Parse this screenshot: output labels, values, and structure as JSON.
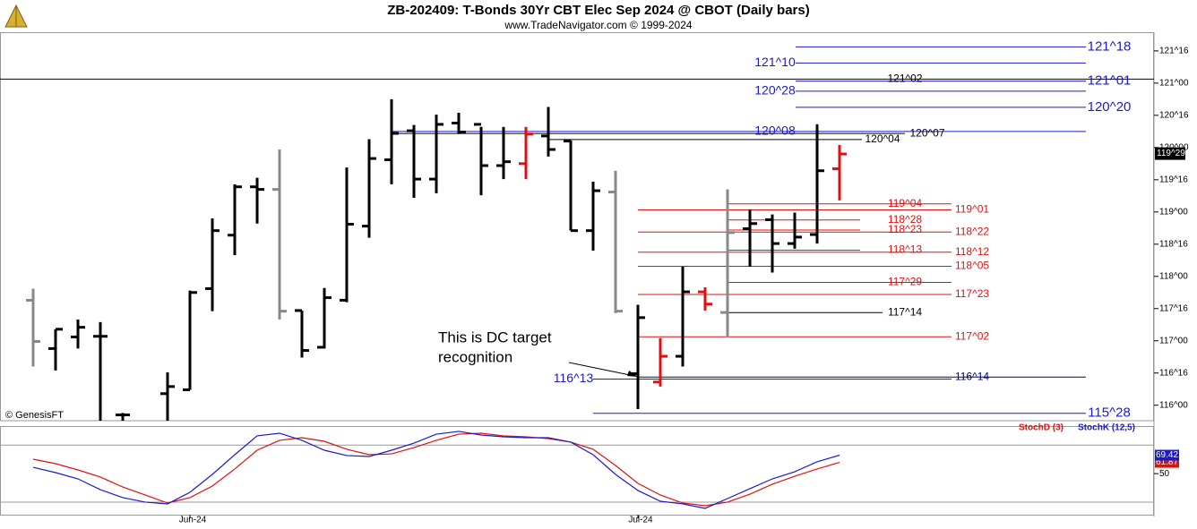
{
  "chart_data": [
    {
      "type": "ohlc",
      "title": "ZB-202409:  T-Bonds 30Yr CBT Elec Sep 2024 @ CBOT  (Daily bars)",
      "subtitle": "www.TradeNavigator.com © 1999-2024",
      "watermark": "© GenesisFT",
      "open": [
        117.63,
        116.88,
        117.06,
        117.07,
        115.85,
        null,
        116.18,
        116.24,
        117.81,
        118.64,
        119.39,
        119.35,
        117.47,
        116.9,
        117.63,
        118.78,
        119.81,
        120.26,
        119.51,
        120.38,
        120.36,
        119.72,
        119.75,
        120.18,
        120.1,
        118.71,
        119.31,
        116.49,
        116.36,
        116.76,
        117.76,
        117.44,
        118.74,
        118.88,
        118.51,
        118.65,
        119.67
      ],
      "high": [
        117.81,
        117.18,
        117.33,
        117.29,
        115.88,
        null,
        116.51,
        117.78,
        118.9,
        119.43,
        119.53,
        119.97,
        117.47,
        117.82,
        119.69,
        120.13,
        120.75,
        120.35,
        120.51,
        120.54,
        120.32,
        120.32,
        120.32,
        120.63,
        120.11,
        119.47,
        119.64,
        117.56,
        117.04,
        118.15,
        117.83,
        119.35,
        119.04,
        118.96,
        118.99,
        120.36,
        120.04
      ],
      "low": [
        116.6,
        116.54,
        116.88,
        115.76,
        115.76,
        null,
        115.76,
        116.24,
        117.46,
        118.33,
        118.82,
        117.33,
        116.74,
        116.88,
        117.6,
        118.6,
        119.43,
        119.22,
        119.29,
        120.21,
        119.26,
        119.51,
        119.51,
        119.86,
        118.71,
        118.4,
        117.43,
        115.94,
        116.29,
        116.6,
        117.47,
        117.06,
        118.15,
        118.06,
        118.43,
        118.51,
        119.18
      ],
      "close": [
        116.99,
        117.18,
        117.21,
        117.07,
        115.85,
        null,
        116.29,
        117.75,
        118.71,
        119.39,
        119.35,
        117.46,
        116.85,
        117.67,
        118.81,
        119.83,
        120.22,
        119.51,
        120.36,
        120.24,
        119.72,
        119.78,
        120.21,
        119.97,
        118.71,
        119.33,
        117.46,
        117.36,
        116.76,
        117.76,
        117.57,
        118.68,
        118.82,
        118.51,
        118.61,
        119.64,
        119.9
      ],
      "colors": [
        "#888888",
        "#000000",
        "#000000",
        "#000000",
        "#000000",
        null,
        "#000000",
        "#000000",
        "#000000",
        "#000000",
        "#000000",
        "#888888",
        "#000000",
        "#000000",
        "#000000",
        "#000000",
        "#000000",
        "#000000",
        "#000000",
        "#000000",
        "#000000",
        "#000000",
        "#e01010",
        "#000000",
        "#000000",
        "#000000",
        "#888888",
        "#000000",
        "#e01010",
        "#000000",
        "#e01010",
        "#888888",
        "#000000",
        "#000000",
        "#000000",
        "#000000",
        "#e01010"
      ],
      "ylim": [
        115.76,
        121.79
      ],
      "yticks": [
        {
          "value": 116,
          "label": "116^00"
        },
        {
          "value": 116.5,
          "label": "116^16"
        },
        {
          "value": 117,
          "label": "117^00"
        },
        {
          "value": 117.5,
          "label": "117^16"
        },
        {
          "value": 118,
          "label": "118^00"
        },
        {
          "value": 118.5,
          "label": "118^16"
        },
        {
          "value": 119,
          "label": "119^00"
        },
        {
          "value": 119.5,
          "label": "119^16"
        },
        {
          "value": 120,
          "label": "120^00"
        },
        {
          "value": 120.5,
          "label": "120^16"
        },
        {
          "value": 121,
          "label": "121^00"
        },
        {
          "value": 121.5,
          "label": "121^16"
        }
      ],
      "last_price": {
        "value": 119.90625,
        "label": "119^29"
      },
      "levels": [
        {
          "value": 121.5625,
          "label": "121^18",
          "color": "#1a1acc"
        },
        {
          "value": 121.3125,
          "label": "121^10",
          "color": "#1a1acc"
        },
        {
          "value": 121.0625,
          "label": "121^02",
          "color": "#000000"
        },
        {
          "value": 121.03125,
          "label": "121^01",
          "color": "#1a1acc"
        },
        {
          "value": 120.875,
          "label": "120^28",
          "color": "#1a1acc"
        },
        {
          "value": 120.625,
          "label": "120^20",
          "color": "#1a1acc"
        },
        {
          "value": 120.25,
          "label": "120^08",
          "color": "#1a1acc"
        },
        {
          "value": 120.21875,
          "label": "120^07",
          "color": "#000000"
        },
        {
          "value": 120.125,
          "label": "120^04",
          "color": "#000000"
        },
        {
          "value": 119.125,
          "label": "119^04",
          "color": "#e01010"
        },
        {
          "value": 119.03125,
          "label": "119^01",
          "color": "#e01010"
        },
        {
          "value": 118.875,
          "label": "118^28",
          "color": "#e01010"
        },
        {
          "value": 118.71875,
          "label": "118^23",
          "color": "#e01010"
        },
        {
          "value": 118.6875,
          "label": "118^22",
          "color": "#e01010"
        },
        {
          "value": 118.40625,
          "label": "118^13",
          "color": "#e01010"
        },
        {
          "value": 118.375,
          "label": "118^12",
          "color": "#e01010"
        },
        {
          "value": 118.15625,
          "label": "118^05",
          "color": "#e01010"
        },
        {
          "value": 117.90625,
          "label": "117^29",
          "color": "#e01010"
        },
        {
          "value": 117.71875,
          "label": "117^23",
          "color": "#e01010"
        },
        {
          "value": 117.4375,
          "label": "117^14",
          "color": "#000000"
        },
        {
          "value": 117.0625,
          "label": "117^02",
          "color": "#e01010"
        },
        {
          "value": 116.4375,
          "label": "116^14",
          "color": "#000080"
        },
        {
          "value": 116.40625,
          "label": "116^13",
          "color": "#1a1acc"
        },
        {
          "value": 115.875,
          "label": "115^28",
          "color": "#1a1acc"
        }
      ],
      "annotation": [
        "This is DC target",
        "recognition"
      ]
    },
    {
      "type": "line",
      "categories": [
        null,
        null,
        null,
        null,
        null,
        null,
        null,
        "Jun-24",
        null,
        null,
        null,
        null,
        null,
        null,
        null,
        null,
        null,
        null,
        null,
        null,
        null,
        null,
        null,
        null,
        null,
        null,
        null,
        "Jul-24",
        null,
        null,
        null,
        null,
        null,
        null,
        null,
        null,
        null
      ],
      "series": [
        {
          "name": "StochD (3)",
          "color": "#e01010",
          "values": [
            65.2,
            60.5,
            53.9,
            46.4,
            36.0,
            27.6,
            19.1,
            24.8,
            37.0,
            54.9,
            74.6,
            85.0,
            87.8,
            84.0,
            75.6,
            69.9,
            70.8,
            77.4,
            85.0,
            91.5,
            92.5,
            89.7,
            88.7,
            86.8,
            83.1,
            75.6,
            58.6,
            39.8,
            27.6,
            19.1,
            16.3,
            20.1,
            28.5,
            38.9,
            47.3,
            54.9,
            61.87
          ]
        },
        {
          "name": "StochK (12,5)",
          "color": "#1a1acc",
          "values": [
            56.7,
            51.1,
            44.5,
            33.2,
            24.8,
            20.1,
            18.2,
            30.4,
            49.2,
            69.9,
            89.7,
            92.5,
            85.0,
            74.6,
            69.0,
            68.0,
            74.6,
            82.1,
            91.5,
            94.4,
            90.6,
            88.7,
            87.8,
            87.8,
            83.1,
            69.9,
            49.2,
            32.3,
            21.0,
            18.2,
            13.5,
            23.8,
            34.2,
            44.5,
            52.0,
            62.4,
            69.42
          ]
        }
      ],
      "ylim": [
        5,
        100
      ],
      "yticks": [
        50
      ],
      "reflines": [
        20,
        80
      ]
    }
  ]
}
